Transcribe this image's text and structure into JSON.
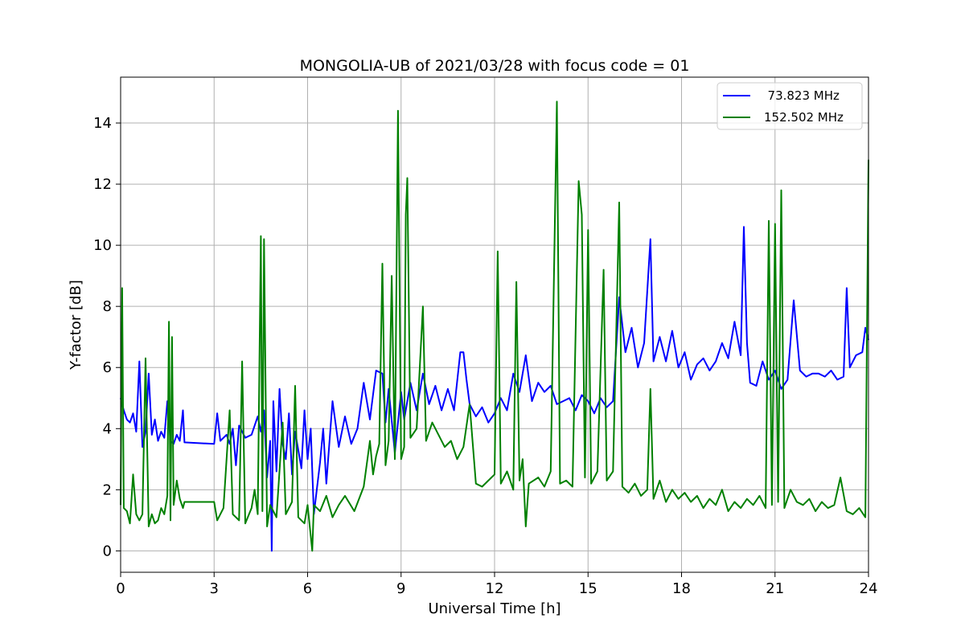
{
  "chart_data": {
    "type": "line",
    "title": "MONGOLIA-UB of 2021/03/28 with focus code = 01",
    "xlabel": "Universal Time [h]",
    "ylabel": "Y-factor [dB]",
    "xlim": [
      0,
      24
    ],
    "ylim": [
      -0.7,
      15.5
    ],
    "xticks": [
      0,
      3,
      6,
      9,
      12,
      15,
      18,
      21,
      24
    ],
    "yticks": [
      0,
      2,
      4,
      6,
      8,
      10,
      12,
      14
    ],
    "grid": true,
    "legend_position": "top-right",
    "series": [
      {
        "name": "  73.823 MHz",
        "color": "#0000ff",
        "points": [
          [
            0.0,
            5.0
          ],
          [
            0.1,
            4.6
          ],
          [
            0.2,
            4.3
          ],
          [
            0.3,
            4.2
          ],
          [
            0.4,
            4.5
          ],
          [
            0.5,
            3.9
          ],
          [
            0.6,
            6.2
          ],
          [
            0.7,
            3.4
          ],
          [
            0.8,
            3.9
          ],
          [
            0.9,
            5.8
          ],
          [
            1.0,
            3.8
          ],
          [
            1.1,
            4.3
          ],
          [
            1.2,
            3.6
          ],
          [
            1.3,
            3.9
          ],
          [
            1.4,
            3.7
          ],
          [
            1.5,
            4.9
          ],
          [
            1.6,
            3.6
          ],
          [
            1.7,
            3.5
          ],
          [
            1.8,
            3.8
          ],
          [
            1.9,
            3.6
          ],
          [
            2.0,
            4.6
          ],
          [
            2.05,
            3.55
          ],
          [
            3.0,
            3.5
          ],
          [
            3.1,
            4.5
          ],
          [
            3.2,
            3.6
          ],
          [
            3.4,
            3.8
          ],
          [
            3.5,
            3.5
          ],
          [
            3.6,
            4.0
          ],
          [
            3.7,
            2.8
          ],
          [
            3.8,
            4.1
          ],
          [
            4.0,
            3.7
          ],
          [
            4.2,
            3.8
          ],
          [
            4.4,
            4.4
          ],
          [
            4.5,
            3.9
          ],
          [
            4.6,
            4.6
          ],
          [
            4.7,
            2.4
          ],
          [
            4.8,
            3.6
          ],
          [
            4.85,
            0.0
          ],
          [
            4.9,
            4.9
          ],
          [
            5.0,
            2.6
          ],
          [
            5.1,
            5.3
          ],
          [
            5.2,
            3.5
          ],
          [
            5.3,
            3.0
          ],
          [
            5.4,
            4.5
          ],
          [
            5.5,
            2.5
          ],
          [
            5.6,
            3.9
          ],
          [
            5.8,
            2.7
          ],
          [
            5.9,
            4.6
          ],
          [
            6.0,
            3.0
          ],
          [
            6.1,
            4.0
          ],
          [
            6.2,
            1.2
          ],
          [
            6.4,
            2.9
          ],
          [
            6.5,
            4.0
          ],
          [
            6.6,
            2.2
          ],
          [
            6.8,
            4.9
          ],
          [
            7.0,
            3.4
          ],
          [
            7.2,
            4.4
          ],
          [
            7.4,
            3.5
          ],
          [
            7.6,
            4.0
          ],
          [
            7.8,
            5.5
          ],
          [
            8.0,
            4.3
          ],
          [
            8.2,
            5.9
          ],
          [
            8.4,
            5.8
          ],
          [
            8.5,
            4.2
          ],
          [
            8.6,
            5.3
          ],
          [
            8.8,
            3.2
          ],
          [
            9.0,
            5.2
          ],
          [
            9.1,
            4.3
          ],
          [
            9.3,
            5.5
          ],
          [
            9.5,
            4.6
          ],
          [
            9.7,
            5.8
          ],
          [
            9.9,
            4.8
          ],
          [
            10.1,
            5.4
          ],
          [
            10.3,
            4.6
          ],
          [
            10.5,
            5.3
          ],
          [
            10.7,
            4.6
          ],
          [
            10.9,
            6.5
          ],
          [
            11.0,
            6.5
          ],
          [
            11.1,
            5.6
          ],
          [
            11.2,
            4.8
          ],
          [
            11.4,
            4.4
          ],
          [
            11.6,
            4.7
          ],
          [
            11.8,
            4.2
          ],
          [
            12.0,
            4.5
          ],
          [
            12.2,
            5.0
          ],
          [
            12.4,
            4.6
          ],
          [
            12.6,
            5.8
          ],
          [
            12.8,
            5.2
          ],
          [
            13.0,
            6.4
          ],
          [
            13.2,
            4.9
          ],
          [
            13.4,
            5.5
          ],
          [
            13.6,
            5.2
          ],
          [
            13.8,
            5.4
          ],
          [
            14.0,
            4.8
          ],
          [
            14.2,
            4.9
          ],
          [
            14.4,
            5.0
          ],
          [
            14.6,
            4.6
          ],
          [
            14.8,
            5.1
          ],
          [
            15.0,
            4.9
          ],
          [
            15.2,
            4.5
          ],
          [
            15.4,
            5.0
          ],
          [
            15.6,
            4.7
          ],
          [
            15.8,
            4.9
          ],
          [
            16.0,
            8.3
          ],
          [
            16.2,
            6.5
          ],
          [
            16.4,
            7.3
          ],
          [
            16.6,
            6.0
          ],
          [
            16.8,
            6.8
          ],
          [
            17.0,
            10.2
          ],
          [
            17.1,
            6.2
          ],
          [
            17.3,
            7.0
          ],
          [
            17.5,
            6.2
          ],
          [
            17.7,
            7.2
          ],
          [
            17.9,
            6.0
          ],
          [
            18.1,
            6.5
          ],
          [
            18.3,
            5.6
          ],
          [
            18.5,
            6.1
          ],
          [
            18.7,
            6.3
          ],
          [
            18.9,
            5.9
          ],
          [
            19.1,
            6.2
          ],
          [
            19.3,
            6.8
          ],
          [
            19.5,
            6.3
          ],
          [
            19.7,
            7.5
          ],
          [
            19.9,
            6.4
          ],
          [
            20.0,
            10.6
          ],
          [
            20.1,
            6.8
          ],
          [
            20.2,
            5.5
          ],
          [
            20.4,
            5.4
          ],
          [
            20.6,
            6.2
          ],
          [
            20.8,
            5.6
          ],
          [
            21.0,
            5.9
          ],
          [
            21.2,
            5.3
          ],
          [
            21.4,
            5.6
          ],
          [
            21.6,
            8.2
          ],
          [
            21.8,
            5.9
          ],
          [
            22.0,
            5.7
          ],
          [
            22.2,
            5.8
          ],
          [
            22.4,
            5.8
          ],
          [
            22.6,
            5.7
          ],
          [
            22.8,
            5.9
          ],
          [
            23.0,
            5.6
          ],
          [
            23.2,
            5.7
          ],
          [
            23.3,
            8.6
          ],
          [
            23.4,
            6.0
          ],
          [
            23.6,
            6.4
          ],
          [
            23.8,
            6.5
          ],
          [
            23.9,
            7.3
          ],
          [
            24.0,
            6.9
          ]
        ]
      },
      {
        "name": "152.502 MHz",
        "color": "#008000",
        "points": [
          [
            0.0,
            1.5
          ],
          [
            0.05,
            8.6
          ],
          [
            0.1,
            1.4
          ],
          [
            0.2,
            1.3
          ],
          [
            0.3,
            0.9
          ],
          [
            0.4,
            2.5
          ],
          [
            0.5,
            1.2
          ],
          [
            0.6,
            1.0
          ],
          [
            0.7,
            1.2
          ],
          [
            0.8,
            6.3
          ],
          [
            0.9,
            0.8
          ],
          [
            1.0,
            1.2
          ],
          [
            1.1,
            0.9
          ],
          [
            1.2,
            1.0
          ],
          [
            1.3,
            1.4
          ],
          [
            1.4,
            1.2
          ],
          [
            1.5,
            1.8
          ],
          [
            1.55,
            7.5
          ],
          [
            1.6,
            1.0
          ],
          [
            1.65,
            7.0
          ],
          [
            1.7,
            1.5
          ],
          [
            1.8,
            2.3
          ],
          [
            1.9,
            1.7
          ],
          [
            2.0,
            1.4
          ],
          [
            2.05,
            1.6
          ],
          [
            3.0,
            1.6
          ],
          [
            3.1,
            1.0
          ],
          [
            3.3,
            1.4
          ],
          [
            3.5,
            4.6
          ],
          [
            3.6,
            1.2
          ],
          [
            3.8,
            1.0
          ],
          [
            3.9,
            6.2
          ],
          [
            4.0,
            0.9
          ],
          [
            4.2,
            1.4
          ],
          [
            4.3,
            2.0
          ],
          [
            4.4,
            1.2
          ],
          [
            4.5,
            10.3
          ],
          [
            4.55,
            1.3
          ],
          [
            4.6,
            10.2
          ],
          [
            4.7,
            0.8
          ],
          [
            4.8,
            1.5
          ],
          [
            5.0,
            1.1
          ],
          [
            5.2,
            4.2
          ],
          [
            5.3,
            1.2
          ],
          [
            5.5,
            1.6
          ],
          [
            5.6,
            5.4
          ],
          [
            5.7,
            1.1
          ],
          [
            5.9,
            0.9
          ],
          [
            6.0,
            1.5
          ],
          [
            6.15,
            0.0
          ],
          [
            6.2,
            1.5
          ],
          [
            6.4,
            1.3
          ],
          [
            6.6,
            1.8
          ],
          [
            6.8,
            1.1
          ],
          [
            7.0,
            1.5
          ],
          [
            7.2,
            1.8
          ],
          [
            7.5,
            1.3
          ],
          [
            7.8,
            2.1
          ],
          [
            8.0,
            3.6
          ],
          [
            8.1,
            2.5
          ],
          [
            8.2,
            3.1
          ],
          [
            8.3,
            3.5
          ],
          [
            8.4,
            9.4
          ],
          [
            8.5,
            2.8
          ],
          [
            8.6,
            3.6
          ],
          [
            8.7,
            9.0
          ],
          [
            8.8,
            3.0
          ],
          [
            8.9,
            14.4
          ],
          [
            9.0,
            3.0
          ],
          [
            9.1,
            3.4
          ],
          [
            9.15,
            11.0
          ],
          [
            9.2,
            12.2
          ],
          [
            9.3,
            3.7
          ],
          [
            9.5,
            4.0
          ],
          [
            9.7,
            8.0
          ],
          [
            9.8,
            3.6
          ],
          [
            10.0,
            4.2
          ],
          [
            10.2,
            3.8
          ],
          [
            10.4,
            3.4
          ],
          [
            10.6,
            3.6
          ],
          [
            10.8,
            3.0
          ],
          [
            11.0,
            3.4
          ],
          [
            11.2,
            4.8
          ],
          [
            11.4,
            2.2
          ],
          [
            11.6,
            2.1
          ],
          [
            11.8,
            2.3
          ],
          [
            12.0,
            2.5
          ],
          [
            12.1,
            9.8
          ],
          [
            12.2,
            2.2
          ],
          [
            12.4,
            2.6
          ],
          [
            12.6,
            2.0
          ],
          [
            12.7,
            8.8
          ],
          [
            12.8,
            2.3
          ],
          [
            12.9,
            3.0
          ],
          [
            13.0,
            0.8
          ],
          [
            13.1,
            2.2
          ],
          [
            13.4,
            2.4
          ],
          [
            13.6,
            2.1
          ],
          [
            13.8,
            2.6
          ],
          [
            14.0,
            14.7
          ],
          [
            14.1,
            2.2
          ],
          [
            14.3,
            2.3
          ],
          [
            14.5,
            2.1
          ],
          [
            14.7,
            12.1
          ],
          [
            14.8,
            11.0
          ],
          [
            14.9,
            2.4
          ],
          [
            15.0,
            10.5
          ],
          [
            15.1,
            2.2
          ],
          [
            15.3,
            2.6
          ],
          [
            15.5,
            9.2
          ],
          [
            15.6,
            2.3
          ],
          [
            15.8,
            2.6
          ],
          [
            16.0,
            11.4
          ],
          [
            16.1,
            2.1
          ],
          [
            16.3,
            1.9
          ],
          [
            16.5,
            2.2
          ],
          [
            16.7,
            1.8
          ],
          [
            16.9,
            2.0
          ],
          [
            17.0,
            5.3
          ],
          [
            17.1,
            1.7
          ],
          [
            17.3,
            2.3
          ],
          [
            17.5,
            1.6
          ],
          [
            17.7,
            2.0
          ],
          [
            17.9,
            1.7
          ],
          [
            18.1,
            1.9
          ],
          [
            18.3,
            1.6
          ],
          [
            18.5,
            1.8
          ],
          [
            18.7,
            1.4
          ],
          [
            18.9,
            1.7
          ],
          [
            19.1,
            1.5
          ],
          [
            19.3,
            2.0
          ],
          [
            19.5,
            1.3
          ],
          [
            19.7,
            1.6
          ],
          [
            19.9,
            1.4
          ],
          [
            20.1,
            1.7
          ],
          [
            20.3,
            1.5
          ],
          [
            20.5,
            1.8
          ],
          [
            20.7,
            1.4
          ],
          [
            20.8,
            10.8
          ],
          [
            20.9,
            1.5
          ],
          [
            21.0,
            10.7
          ],
          [
            21.1,
            1.6
          ],
          [
            21.2,
            11.8
          ],
          [
            21.3,
            1.4
          ],
          [
            21.5,
            2.0
          ],
          [
            21.7,
            1.6
          ],
          [
            21.9,
            1.5
          ],
          [
            22.1,
            1.7
          ],
          [
            22.3,
            1.3
          ],
          [
            22.5,
            1.6
          ],
          [
            22.7,
            1.4
          ],
          [
            22.9,
            1.5
          ],
          [
            23.1,
            2.4
          ],
          [
            23.3,
            1.3
          ],
          [
            23.5,
            1.2
          ],
          [
            23.7,
            1.4
          ],
          [
            23.9,
            1.1
          ],
          [
            24.0,
            12.8
          ]
        ]
      }
    ]
  }
}
